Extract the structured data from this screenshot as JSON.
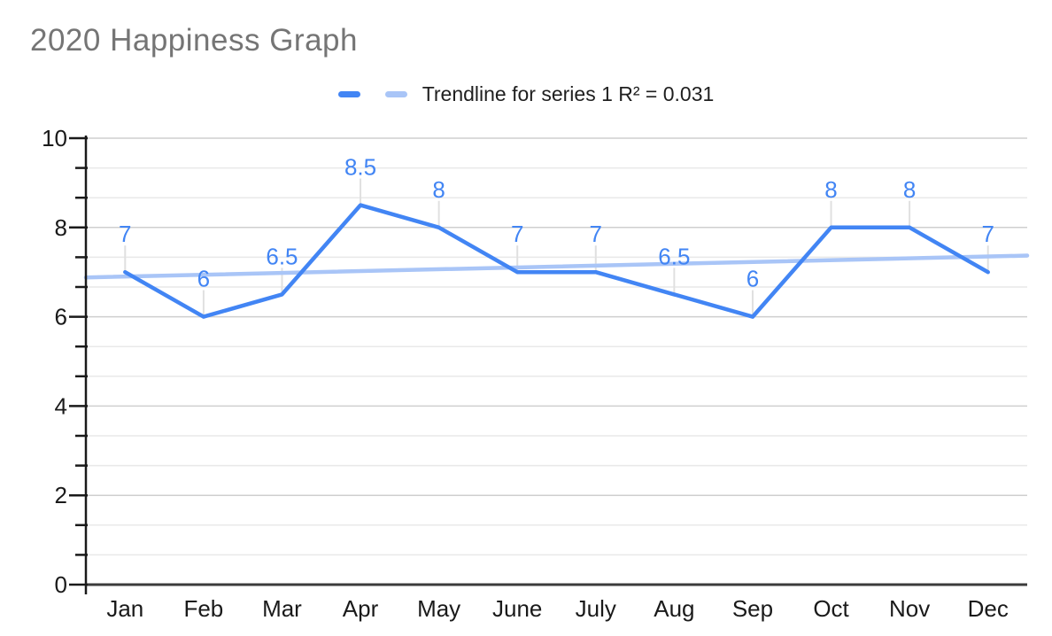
{
  "title": "2020 Happiness Graph",
  "legend": {
    "series_swatch_color": "#4285f4",
    "trendline_swatch_color": "#a9c5f7",
    "label": "Trendline for series 1 R² = 0.031"
  },
  "chart_data": {
    "type": "line",
    "title": "2020 Happiness Graph",
    "categories": [
      "Jan",
      "Feb",
      "Mar",
      "Apr",
      "May",
      "June",
      "July",
      "Aug",
      "Sep",
      "Oct",
      "Nov",
      "Dec"
    ],
    "series": [
      {
        "name": "series 1",
        "color": "#4285f4",
        "values": [
          7,
          6,
          6.5,
          8.5,
          8,
          7,
          7,
          6.5,
          6,
          8,
          8,
          7
        ]
      }
    ],
    "data_labels_shown": true,
    "data_label_color": "#4285f4",
    "trendline": {
      "label": "Trendline for series 1 R² = 0.031",
      "r_squared": 0.031,
      "color": "#a9c5f7",
      "start_value": 6.88,
      "end_value": 7.37
    },
    "y_axis": {
      "min": 0,
      "max": 10,
      "tick_labels": [
        "0",
        "2",
        "4",
        "6",
        "8",
        "10"
      ],
      "tick_values": [
        0,
        2,
        4,
        6,
        8,
        10
      ],
      "minor_divisions_per_major": 3
    },
    "grid": true,
    "legend_position": "top",
    "colors": {
      "title_text": "#757575",
      "axis_text": "#1a1a1a",
      "axis_line": "#1a1a1a",
      "baseline": "#3b3b3b",
      "major_gridline": "#cfcfcf",
      "minor_gridline": "#e9e9e9",
      "leader_line": "#e0e0e0"
    }
  }
}
